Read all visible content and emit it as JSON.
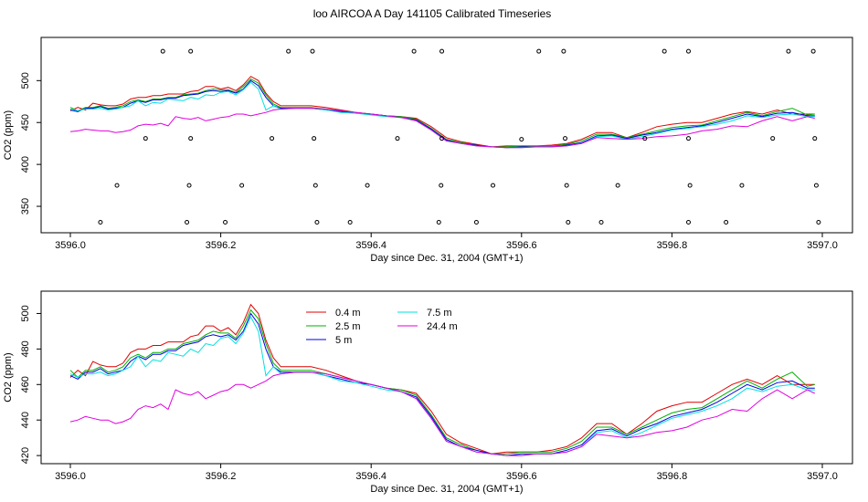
{
  "title": "loo AIRCOA A  Day 141105  Calibrated Timeseries",
  "colors": {
    "0.4 m": "#e00000",
    "2.5 m": "#00b000",
    "5 m": "#0000e0",
    "7.5 m": "#00e0e0",
    "24.4 m": "#e000e0"
  },
  "chart_data": [
    {
      "type": "line",
      "title": "",
      "xlabel": "Day since Dec. 31, 2004 (GMT+1)",
      "ylabel": "CO2 (ppm)",
      "xlim": [
        3596.0,
        3597.0
      ],
      "ylim": [
        325,
        545
      ],
      "x_ticks": [
        3596.0,
        3596.2,
        3596.4,
        3596.6,
        3596.8,
        3597.0
      ],
      "x_tick_labels": [
        "3596.0",
        "3596.2",
        "3596.4",
        "3596.6",
        "3596.8",
        "3597.0"
      ],
      "y_ticks": [
        350,
        400,
        450,
        500
      ],
      "y_tick_labels": [
        "350",
        "400",
        "450",
        "500"
      ],
      "legend": "none",
      "series_ref": "shared_series",
      "markers": {
        "type": "scatter",
        "symbol": "open-circle",
        "points": [
          [
            3596.123,
            535
          ],
          [
            3596.16,
            535
          ],
          [
            3596.29,
            535
          ],
          [
            3596.322,
            535
          ],
          [
            3596.457,
            535
          ],
          [
            3596.494,
            535
          ],
          [
            3596.623,
            535
          ],
          [
            3596.656,
            535
          ],
          [
            3596.79,
            535
          ],
          [
            3596.822,
            535
          ],
          [
            3596.955,
            535
          ],
          [
            3596.988,
            535
          ],
          [
            3596.1,
            431
          ],
          [
            3596.16,
            431
          ],
          [
            3596.268,
            431
          ],
          [
            3596.324,
            431
          ],
          [
            3596.435,
            431
          ],
          [
            3596.494,
            431
          ],
          [
            3596.6,
            430
          ],
          [
            3596.658,
            431
          ],
          [
            3596.764,
            431
          ],
          [
            3596.822,
            431
          ],
          [
            3596.934,
            431
          ],
          [
            3596.99,
            431
          ],
          [
            3596.062,
            375
          ],
          [
            3596.158,
            375
          ],
          [
            3596.228,
            375
          ],
          [
            3596.326,
            375
          ],
          [
            3596.395,
            375
          ],
          [
            3596.493,
            375
          ],
          [
            3596.562,
            375
          ],
          [
            3596.66,
            375
          ],
          [
            3596.728,
            375
          ],
          [
            3596.824,
            375
          ],
          [
            3596.893,
            375
          ],
          [
            3596.992,
            375
          ],
          [
            3596.04,
            331
          ],
          [
            3596.155,
            331
          ],
          [
            3596.206,
            331
          ],
          [
            3596.328,
            331
          ],
          [
            3596.372,
            331
          ],
          [
            3596.49,
            331
          ],
          [
            3596.54,
            331
          ],
          [
            3596.662,
            331
          ],
          [
            3596.706,
            331
          ],
          [
            3596.822,
            331
          ],
          [
            3596.872,
            331
          ],
          [
            3596.995,
            331
          ]
        ]
      }
    },
    {
      "type": "line",
      "title": "",
      "xlabel": "Day since Dec. 31, 2004 (GMT+1)",
      "ylabel": "CO2 (ppm)",
      "xlim": [
        3596.0,
        3597.0
      ],
      "ylim": [
        418,
        510
      ],
      "x_ticks": [
        3596.0,
        3596.2,
        3596.4,
        3596.6,
        3596.8,
        3597.0
      ],
      "x_tick_labels": [
        "3596.0",
        "3596.2",
        "3596.4",
        "3596.6",
        "3596.8",
        "3597.0"
      ],
      "y_ticks": [
        420,
        440,
        460,
        480,
        500
      ],
      "y_tick_labels": [
        "420",
        "440",
        "460",
        "480",
        "500"
      ],
      "legend": "top-left",
      "legend_entries": [
        "0.4 m",
        "2.5 m",
        "5 m",
        "7.5 m",
        "24.4 m"
      ],
      "series_ref": "shared_series"
    }
  ],
  "shared_series": [
    {
      "name": "0.4 m",
      "x": [
        3596.0,
        3596.01,
        3596.02,
        3596.03,
        3596.04,
        3596.05,
        3596.06,
        3596.07,
        3596.08,
        3596.09,
        3596.1,
        3596.11,
        3596.12,
        3596.13,
        3596.14,
        3596.15,
        3596.16,
        3596.17,
        3596.18,
        3596.19,
        3596.2,
        3596.21,
        3596.22,
        3596.23,
        3596.24,
        3596.25,
        3596.26,
        3596.27,
        3596.28,
        3596.3,
        3596.32,
        3596.34,
        3596.36,
        3596.38,
        3596.4,
        3596.42,
        3596.44,
        3596.46,
        3596.48,
        3596.5,
        3596.52,
        3596.54,
        3596.56,
        3596.58,
        3596.6,
        3596.62,
        3596.64,
        3596.66,
        3596.68,
        3596.7,
        3596.72,
        3596.74,
        3596.76,
        3596.78,
        3596.8,
        3596.82,
        3596.84,
        3596.86,
        3596.88,
        3596.9,
        3596.92,
        3596.94,
        3596.96,
        3596.98,
        3596.99
      ],
      "y": [
        464,
        468,
        465,
        473,
        471,
        470,
        470,
        472,
        478,
        480,
        480,
        482,
        482,
        484,
        484,
        484,
        487,
        488,
        493,
        493,
        490,
        492,
        488,
        495,
        505,
        500,
        485,
        475,
        470,
        470,
        470,
        468,
        465,
        462,
        460,
        458,
        457,
        455,
        445,
        432,
        427,
        424,
        421,
        422,
        422,
        422,
        423,
        425,
        430,
        438,
        438,
        432,
        438,
        445,
        448,
        450,
        450,
        455,
        460,
        463,
        460,
        465,
        460,
        460,
        460
      ]
    },
    {
      "name": "2.5 m",
      "x": [
        3596.0,
        3596.01,
        3596.02,
        3596.03,
        3596.04,
        3596.05,
        3596.06,
        3596.07,
        3596.08,
        3596.09,
        3596.1,
        3596.11,
        3596.12,
        3596.13,
        3596.14,
        3596.15,
        3596.16,
        3596.17,
        3596.18,
        3596.19,
        3596.2,
        3596.21,
        3596.22,
        3596.23,
        3596.24,
        3596.25,
        3596.26,
        3596.27,
        3596.28,
        3596.3,
        3596.32,
        3596.34,
        3596.36,
        3596.38,
        3596.4,
        3596.42,
        3596.44,
        3596.46,
        3596.48,
        3596.5,
        3596.52,
        3596.54,
        3596.56,
        3596.58,
        3596.6,
        3596.62,
        3596.64,
        3596.66,
        3596.68,
        3596.7,
        3596.72,
        3596.74,
        3596.76,
        3596.78,
        3596.8,
        3596.82,
        3596.84,
        3596.86,
        3596.88,
        3596.9,
        3596.92,
        3596.94,
        3596.96,
        3596.98,
        3596.99
      ],
      "y": [
        468,
        464,
        468,
        468,
        470,
        467,
        468,
        470,
        475,
        477,
        475,
        478,
        478,
        480,
        480,
        483,
        484,
        485,
        488,
        490,
        489,
        489,
        486,
        493,
        502,
        497,
        483,
        472,
        468,
        468,
        468,
        466,
        464,
        462,
        460,
        458,
        457,
        454,
        443,
        430,
        426,
        423,
        421,
        421,
        422,
        422,
        422,
        424,
        428,
        436,
        436,
        432,
        436,
        440,
        444,
        446,
        447,
        452,
        457,
        462,
        458,
        463,
        467,
        459,
        460
      ]
    },
    {
      "name": "5 m",
      "x": [
        3596.0,
        3596.01,
        3596.02,
        3596.03,
        3596.04,
        3596.05,
        3596.06,
        3596.07,
        3596.08,
        3596.09,
        3596.1,
        3596.11,
        3596.12,
        3596.13,
        3596.14,
        3596.15,
        3596.16,
        3596.17,
        3596.18,
        3596.19,
        3596.2,
        3596.21,
        3596.22,
        3596.23,
        3596.24,
        3596.25,
        3596.26,
        3596.27,
        3596.28,
        3596.3,
        3596.32,
        3596.34,
        3596.36,
        3596.38,
        3596.4,
        3596.42,
        3596.44,
        3596.46,
        3596.48,
        3596.5,
        3596.52,
        3596.54,
        3596.56,
        3596.58,
        3596.6,
        3596.62,
        3596.64,
        3596.66,
        3596.68,
        3596.7,
        3596.72,
        3596.74,
        3596.76,
        3596.78,
        3596.8,
        3596.82,
        3596.84,
        3596.86,
        3596.88,
        3596.9,
        3596.92,
        3596.94,
        3596.96,
        3596.98,
        3596.99
      ],
      "y": [
        465,
        463,
        467,
        467,
        469,
        466,
        467,
        468,
        473,
        476,
        474,
        477,
        477,
        479,
        479,
        482,
        483,
        484,
        487,
        488,
        487,
        488,
        485,
        490,
        500,
        494,
        480,
        470,
        467,
        467,
        467,
        465,
        463,
        461,
        460,
        458,
        456,
        453,
        442,
        429,
        425,
        423,
        421,
        420,
        421,
        421,
        421,
        423,
        426,
        434,
        435,
        431,
        435,
        438,
        442,
        444,
        446,
        450,
        455,
        460,
        457,
        461,
        462,
        458,
        458
      ]
    },
    {
      "name": "7.5 m",
      "x": [
        3596.0,
        3596.01,
        3596.02,
        3596.03,
        3596.04,
        3596.05,
        3596.06,
        3596.07,
        3596.08,
        3596.09,
        3596.1,
        3596.11,
        3596.12,
        3596.13,
        3596.14,
        3596.15,
        3596.16,
        3596.17,
        3596.18,
        3596.19,
        3596.2,
        3596.21,
        3596.22,
        3596.23,
        3596.24,
        3596.25,
        3596.26,
        3596.27,
        3596.28,
        3596.3,
        3596.32,
        3596.34,
        3596.36,
        3596.38,
        3596.4,
        3596.42,
        3596.44,
        3596.46,
        3596.48,
        3596.5,
        3596.52,
        3596.54,
        3596.56,
        3596.58,
        3596.6,
        3596.62,
        3596.64,
        3596.66,
        3596.68,
        3596.7,
        3596.72,
        3596.74,
        3596.76,
        3596.78,
        3596.8,
        3596.82,
        3596.84,
        3596.86,
        3596.88,
        3596.9,
        3596.92,
        3596.94,
        3596.96,
        3596.98,
        3596.99
      ],
      "y": [
        466,
        464,
        466,
        466,
        467,
        465,
        466,
        468,
        470,
        476,
        470,
        474,
        473,
        478,
        477,
        476,
        480,
        478,
        483,
        482,
        486,
        487,
        483,
        489,
        498,
        490,
        465,
        470,
        466,
        467,
        467,
        465,
        462,
        461,
        459,
        457,
        456,
        452,
        441,
        428,
        425,
        422,
        421,
        420,
        420,
        421,
        421,
        422,
        425,
        433,
        434,
        430,
        433,
        437,
        441,
        443,
        445,
        448,
        452,
        458,
        456,
        459,
        460,
        457,
        457
      ]
    },
    {
      "name": "24.4 m",
      "x": [
        3596.0,
        3596.01,
        3596.02,
        3596.03,
        3596.04,
        3596.05,
        3596.06,
        3596.07,
        3596.08,
        3596.09,
        3596.1,
        3596.11,
        3596.12,
        3596.13,
        3596.14,
        3596.15,
        3596.16,
        3596.17,
        3596.18,
        3596.19,
        3596.2,
        3596.21,
        3596.22,
        3596.23,
        3596.24,
        3596.25,
        3596.26,
        3596.27,
        3596.28,
        3596.3,
        3596.32,
        3596.34,
        3596.36,
        3596.38,
        3596.4,
        3596.42,
        3596.44,
        3596.46,
        3596.48,
        3596.5,
        3596.52,
        3596.54,
        3596.56,
        3596.58,
        3596.6,
        3596.62,
        3596.64,
        3596.66,
        3596.68,
        3596.7,
        3596.72,
        3596.74,
        3596.76,
        3596.78,
        3596.8,
        3596.82,
        3596.84,
        3596.86,
        3596.88,
        3596.9,
        3596.92,
        3596.94,
        3596.96,
        3596.98,
        3596.99
      ],
      "y": [
        439,
        440,
        442,
        441,
        440,
        440,
        438,
        439,
        441,
        446,
        448,
        447,
        449,
        446,
        457,
        455,
        454,
        456,
        452,
        454,
        456,
        457,
        460,
        460,
        458,
        460,
        462,
        465,
        466,
        467,
        467,
        466,
        464,
        462,
        460,
        458,
        456,
        452,
        441,
        428,
        425,
        422,
        421,
        420,
        420,
        421,
        421,
        422,
        425,
        432,
        431,
        430,
        431,
        433,
        434,
        436,
        440,
        442,
        446,
        445,
        452,
        457,
        452,
        457,
        455
      ]
    }
  ]
}
